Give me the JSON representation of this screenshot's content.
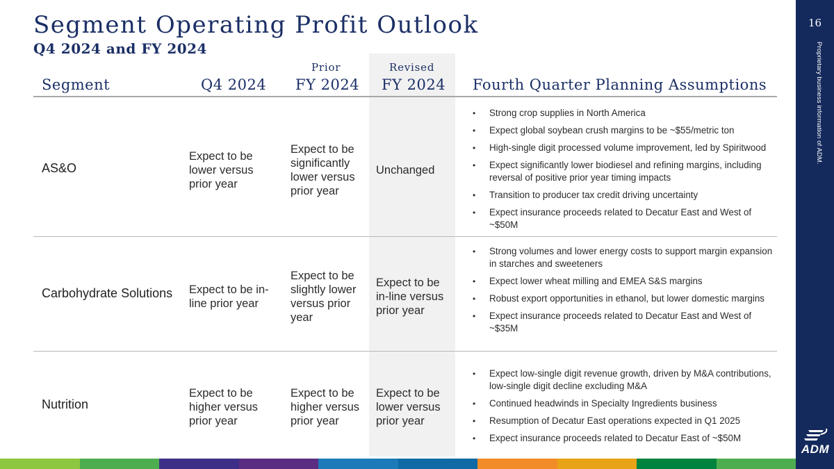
{
  "title": "Segment Operating Profit Outlook",
  "subtitle": "Q4 2024 and FY 2024",
  "page_number": "16",
  "sidebar_text": "Proprietary business information of ADM.",
  "logo_text": "ADM",
  "headers": {
    "segment": "Segment",
    "q4": "Q4 2024",
    "prior_small": "Prior",
    "prior_main": "FY 2024",
    "revised_small": "Revised",
    "revised_main": "FY 2024",
    "assumptions": "Fourth Quarter Planning Assumptions"
  },
  "rows": [
    {
      "segment": "AS&O",
      "q4": "Expect to be lower versus prior year",
      "prior": "Expect to be significantly lower versus prior year",
      "revised": "Unchanged",
      "assumptions": [
        "Strong crop supplies in North America",
        "Expect global soybean crush margins to be ~$55/metric ton",
        "High-single digit processed volume improvement, led by Spiritwood",
        "Expect significantly lower biodiesel and refining margins, including reversal of positive prior year timing impacts",
        "Transition to producer tax credit driving uncertainty",
        "Expect insurance proceeds related to Decatur East and West of ~$50M"
      ]
    },
    {
      "segment": "Carbohydrate Solutions",
      "q4": "Expect to be in-line prior year",
      "prior": "Expect to be slightly lower versus prior year",
      "revised": "Expect to be in-line versus prior year",
      "assumptions": [
        "Strong volumes and lower energy costs to support margin expansion in starches and sweeteners",
        "Expect lower wheat milling and EMEA S&S margins",
        "Robust export opportunities in ethanol, but lower domestic margins",
        "Expect insurance proceeds related to Decatur East and West of ~$35M"
      ]
    },
    {
      "segment": "Nutrition",
      "q4": "Expect to be higher versus prior year",
      "prior": "Expect to be higher versus prior year",
      "revised": "Expect to be lower versus prior year",
      "assumptions": [
        "Expect low-single digit revenue growth, driven by M&A contributions, low-single digit decline excluding M&A",
        "Continued headwinds in Specialty Ingredients business",
        "Resumption of Decatur East operations expected in Q1 2025",
        "Expect insurance proceeds related to Decatur East of ~$50M"
      ]
    }
  ],
  "colors": {
    "navy": "#142a5c",
    "title": "#1b2f66",
    "stripe": [
      "#8dc63f",
      "#4cae4f",
      "#3d2f87",
      "#5a2d82",
      "#1d7ab8",
      "#0f6aa5",
      "#f28c28",
      "#e8a317",
      "#00833e",
      "#4cae4f"
    ]
  }
}
